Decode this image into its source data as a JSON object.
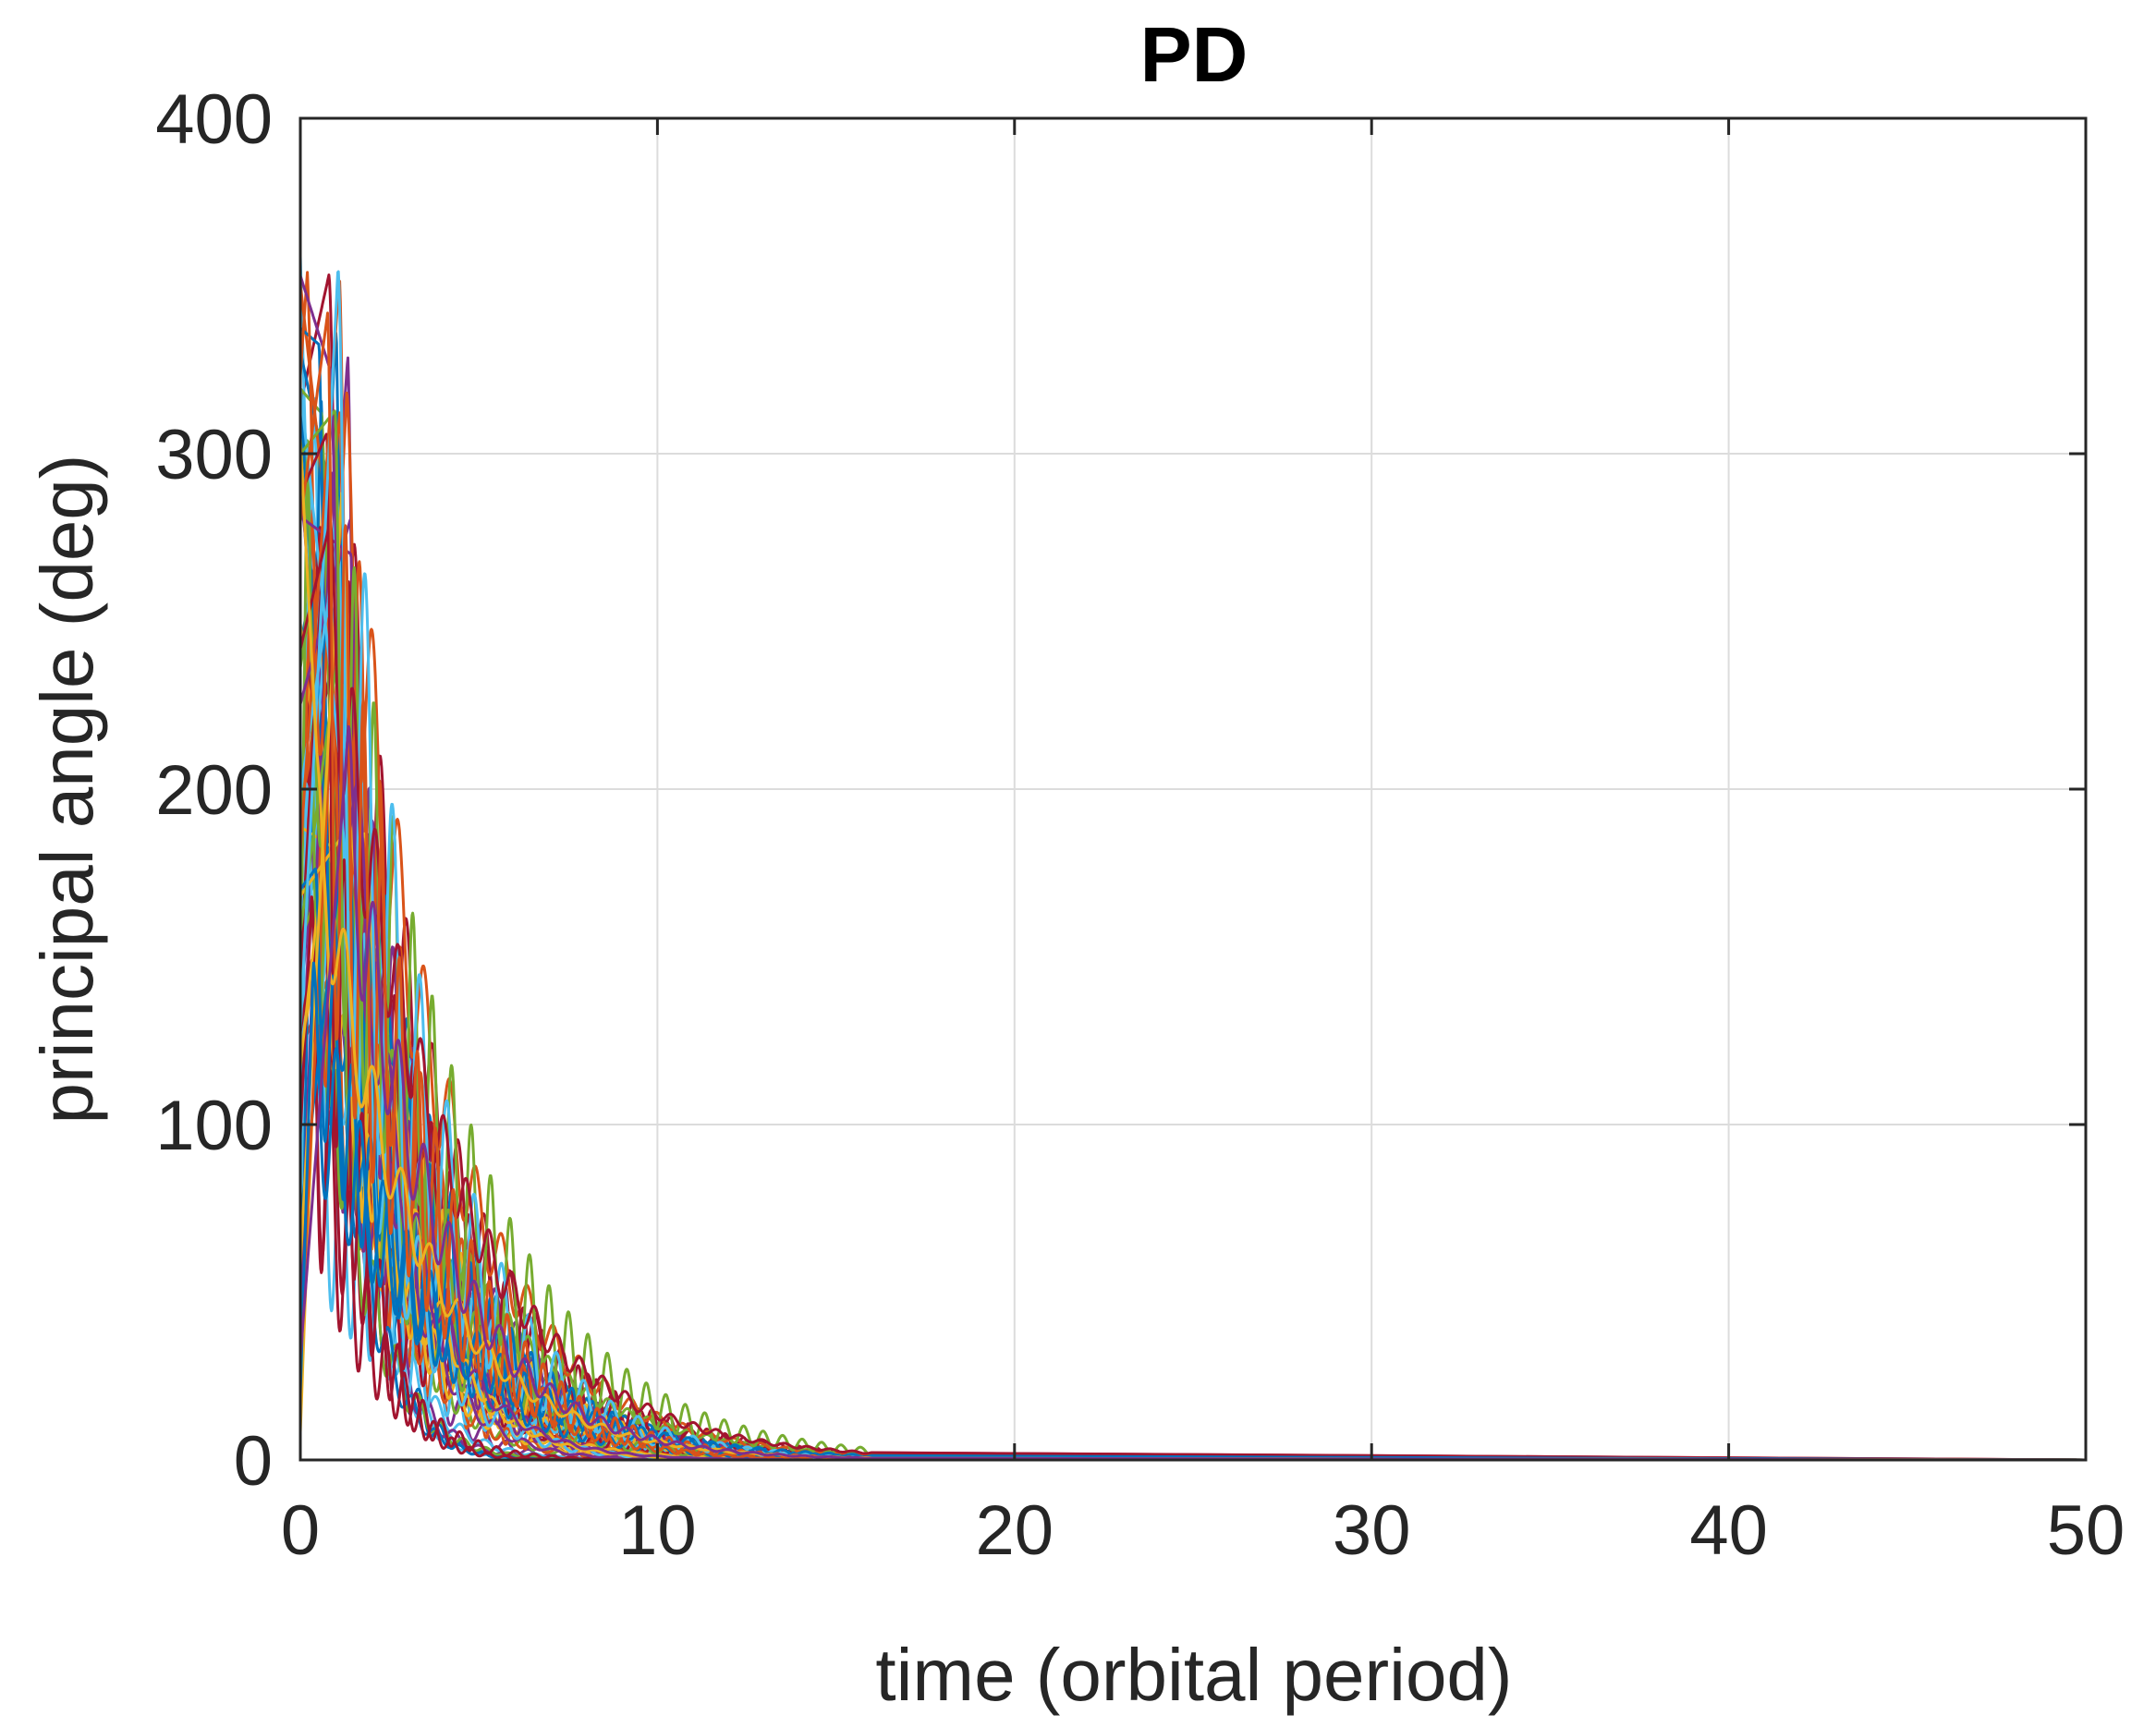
{
  "chart_data": {
    "type": "line",
    "title": "PD",
    "xlabel": "time (orbital period)",
    "ylabel": "principal angle (deg)",
    "xlim": [
      0,
      50
    ],
    "ylim": [
      0,
      400
    ],
    "xticks": [
      0,
      10,
      20,
      30,
      40,
      50
    ],
    "yticks": [
      0,
      100,
      200,
      300,
      400
    ],
    "x_tick_labels": [
      "0",
      "10",
      "20",
      "30",
      "40",
      "50"
    ],
    "y_tick_labels": [
      "0",
      "100",
      "200",
      "300",
      "400"
    ],
    "grid": true,
    "legend": "none",
    "series_description": "Many overlapping Monte Carlo trajectories; each starts between ~0 and ~360 deg near t=0, peaks within the first 1-2 orbital periods, then decays with damped oscillation to ~0 by about t=12-15.",
    "series_count": 60,
    "colors": [
      "#0072BD",
      "#D95319",
      "#EDB120",
      "#7E2F8E",
      "#77AC30",
      "#4DBEEE",
      "#A2142F"
    ],
    "sample_series": [
      {
        "x": [
          0,
          0.5,
          1,
          2,
          3,
          4,
          6,
          8,
          10,
          13,
          50
        ],
        "y": [
          50,
          330,
          290,
          150,
          70,
          40,
          20,
          8,
          3,
          0.5,
          0
        ]
      },
      {
        "x": [
          0,
          0.5,
          1,
          2,
          3,
          4,
          6,
          8,
          10,
          13,
          50
        ],
        "y": [
          120,
          280,
          240,
          120,
          55,
          30,
          15,
          6,
          2,
          0.3,
          0
        ]
      },
      {
        "x": [
          0,
          0.5,
          1,
          2,
          3,
          4,
          6,
          8,
          10,
          13,
          50
        ],
        "y": [
          300,
          350,
          200,
          80,
          30,
          15,
          6,
          2,
          0.5,
          0,
          0
        ]
      }
    ]
  }
}
